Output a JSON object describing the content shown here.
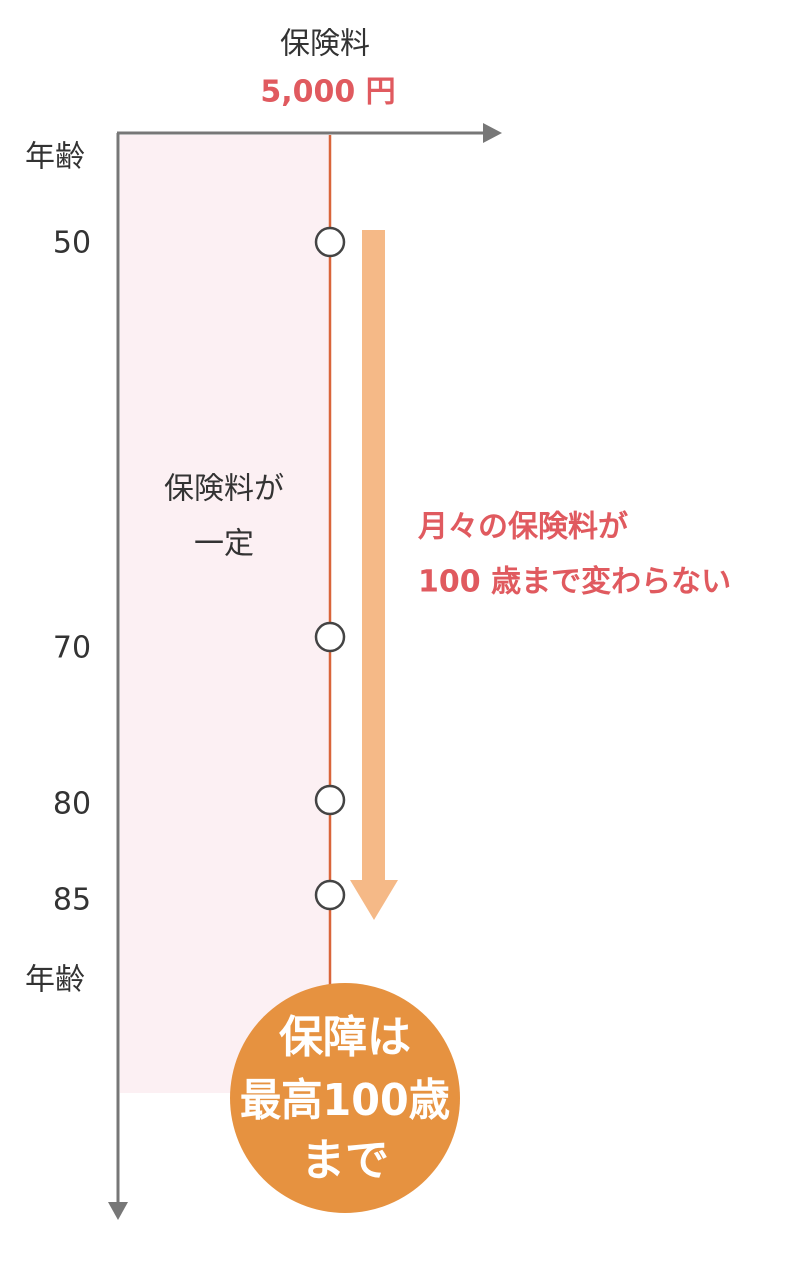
{
  "header": {
    "title": "保険料",
    "premium": "5,000 円"
  },
  "axis": {
    "top_label": "年齢",
    "bottom_label": "年齢"
  },
  "ages": [
    "50",
    "70",
    "80",
    "85"
  ],
  "band_label": [
    "保険料が",
    "一定"
  ],
  "note": [
    "月々の保険料が",
    "100 歳まで変わらない"
  ],
  "badge": [
    "保障は",
    "最高100歳",
    "まで"
  ]
}
